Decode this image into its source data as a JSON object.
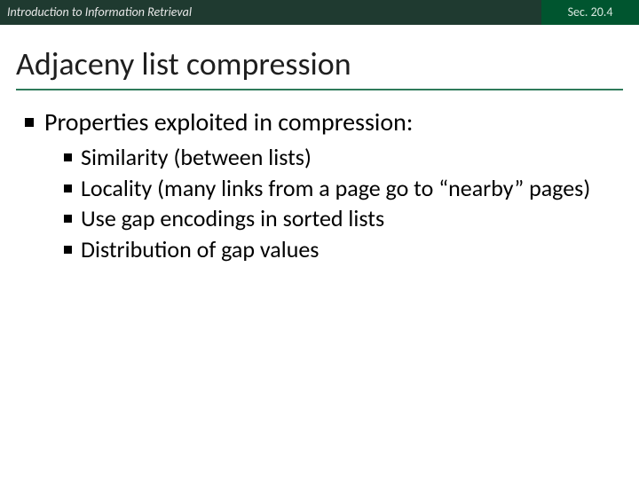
{
  "header": {
    "left": "Introduction to Information Retrieval",
    "right": "Sec. 20.4"
  },
  "title": "Adjaceny list compression",
  "body": {
    "lead": "Properties exploited in compression:",
    "items": [
      "Similarity (between lists)",
      "Locality (many links from a page go to “nearby” pages)",
      "Use gap encodings in sorted lists",
      "Distribution of gap values"
    ]
  },
  "colors": {
    "header_left_bg": "#1f3a30",
    "header_right_bg": "#00552f",
    "underline": "#2f7a5a",
    "text": "#000000",
    "background": "#ffffff"
  },
  "fonts": {
    "title_size_pt": 28,
    "body_size_pt": 21,
    "header_size_pt": 11
  }
}
